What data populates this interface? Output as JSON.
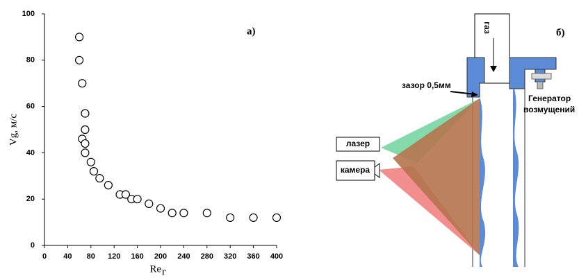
{
  "chart_data": {
    "type": "scatter",
    "panel_label": "а)",
    "x_label": "Re",
    "x_label_sub": "г",
    "y_label": "Vg, м/с",
    "x": [
      60,
      60,
      65,
      70,
      70,
      65,
      70,
      70,
      80,
      85,
      95,
      110,
      130,
      140,
      150,
      160,
      180,
      200,
      220,
      240,
      280,
      320,
      360,
      400
    ],
    "y": [
      90,
      80,
      70,
      57,
      50,
      46,
      44,
      40,
      36,
      32,
      29,
      26,
      22,
      22,
      20,
      20,
      18,
      16,
      14,
      14,
      14,
      12,
      12,
      12
    ],
    "xlim": [
      0,
      400
    ],
    "ylim": [
      0,
      100
    ],
    "xticks": [
      0,
      40,
      80,
      120,
      160,
      200,
      240,
      280,
      320,
      360,
      400
    ],
    "yticks": [
      0,
      20,
      40,
      60,
      80,
      100
    ]
  },
  "diagram": {
    "panel_label": "б)",
    "gas": "газ",
    "gap": "зазор 0,5мм",
    "laser": "лазер",
    "camera": "камера",
    "generator": [
      "Генератор",
      "возмущений"
    ]
  }
}
